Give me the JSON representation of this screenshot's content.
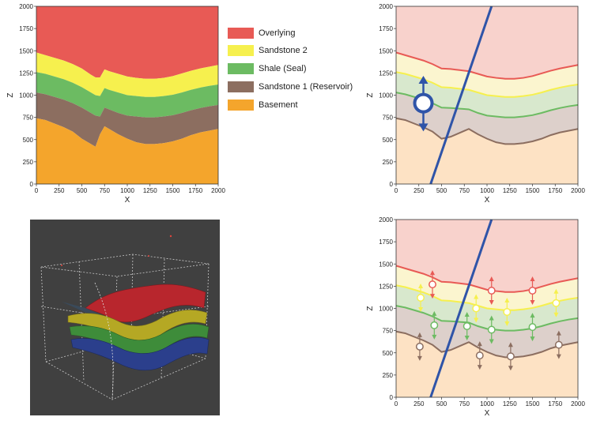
{
  "layers": [
    {
      "id": "overlying",
      "label": "Overlying",
      "color": "#e85a55",
      "light": "#f8d2cc"
    },
    {
      "id": "sandstone2",
      "label": "Sandstone 2",
      "color": "#f6f04e",
      "light": "#fbf5cf"
    },
    {
      "id": "shale",
      "label": "Shale (Seal)",
      "color": "#6cbb62",
      "light": "#d8e8cd"
    },
    {
      "id": "sandstone1",
      "label": "Sandstone 1 (Reservoir)",
      "color": "#8c6e60",
      "light": "#ddd0cb"
    },
    {
      "id": "basement",
      "label": "Basement",
      "color": "#f4a52c",
      "light": "#fde2c4"
    }
  ],
  "fault_color": "#2f54a8",
  "chart_data": [
    {
      "type": "area",
      "xlabel": "X",
      "ylabel": "Z",
      "xlim": [
        0,
        2000
      ],
      "ylim": [
        0,
        2000
      ],
      "xticks": [
        0,
        250,
        500,
        750,
        1000,
        1250,
        1500,
        1750,
        2000
      ],
      "yticks": [
        0,
        250,
        500,
        750,
        1000,
        1250,
        1500,
        1750,
        2000
      ],
      "x": [
        0,
        100,
        200,
        300,
        400,
        500,
        600,
        650,
        700,
        750,
        800,
        900,
        1000,
        1100,
        1200,
        1300,
        1400,
        1500,
        1600,
        1700,
        1800,
        1900,
        2000
      ],
      "series": [
        {
          "name": "Overlying",
          "values": [
            1480,
            1450,
            1420,
            1390,
            1350,
            1300,
            1230,
            1200,
            1200,
            1290,
            1270,
            1240,
            1210,
            1195,
            1185,
            1185,
            1195,
            1215,
            1245,
            1275,
            1300,
            1320,
            1340
          ]
        },
        {
          "name": "Sandstone 2",
          "values": [
            1260,
            1240,
            1210,
            1180,
            1140,
            1090,
            1030,
            1000,
            990,
            1080,
            1060,
            1030,
            1000,
            990,
            980,
            980,
            990,
            1005,
            1030,
            1060,
            1085,
            1105,
            1120
          ]
        },
        {
          "name": "Shale (Seal)",
          "values": [
            1030,
            1010,
            980,
            950,
            910,
            860,
            800,
            770,
            760,
            860,
            840,
            800,
            770,
            760,
            750,
            750,
            760,
            775,
            800,
            830,
            855,
            875,
            890
          ]
        },
        {
          "name": "Sandstone 1 (Reservoir)",
          "values": [
            740,
            720,
            680,
            640,
            590,
            510,
            450,
            420,
            560,
            650,
            620,
            560,
            510,
            470,
            450,
            450,
            460,
            480,
            510,
            550,
            580,
            600,
            620
          ]
        }
      ]
    },
    {
      "type": "line",
      "xlabel": "X",
      "ylabel": "Z",
      "xlim": [
        0,
        2000
      ],
      "ylim": [
        0,
        2000
      ],
      "xticks": [
        0,
        250,
        500,
        750,
        1000,
        1250,
        1500,
        1750,
        2000
      ],
      "yticks": [
        0,
        250,
        500,
        750,
        1000,
        1250,
        1500,
        1750,
        2000
      ],
      "fault": [
        [
          380,
          0
        ],
        [
          1050,
          2000
        ]
      ],
      "well": {
        "x": 300,
        "z": 910,
        "z_top": 1200,
        "z_bottom": 610
      }
    },
    {
      "type": "line",
      "xlabel": "X",
      "ylabel": "Z",
      "xlim": [
        0,
        2000
      ],
      "ylim": [
        0,
        2000
      ],
      "xticks": [
        0,
        250,
        500,
        750,
        1000,
        1250,
        1500,
        1750,
        2000
      ],
      "yticks": [
        0,
        250,
        500,
        750,
        1000,
        1250,
        1500,
        1750,
        2000
      ],
      "fault": [
        [
          380,
          0
        ],
        [
          1050,
          2000
        ]
      ],
      "control_points": [
        {
          "layer": "overlying",
          "points": [
            [
              400,
              1270
            ],
            [
              1050,
              1200
            ],
            [
              1500,
              1200
            ]
          ]
        },
        {
          "layer": "sandstone2",
          "points": [
            [
              270,
              1120
            ],
            [
              880,
              1000
            ],
            [
              1220,
              960
            ],
            [
              1760,
              1060
            ]
          ]
        },
        {
          "layer": "shale",
          "points": [
            [
              420,
              810
            ],
            [
              780,
              800
            ],
            [
              1050,
              760
            ],
            [
              1500,
              790
            ]
          ]
        },
        {
          "layer": "sandstone1",
          "points": [
            [
              260,
              570
            ],
            [
              920,
              470
            ],
            [
              1260,
              460
            ],
            [
              1790,
              590
            ]
          ]
        }
      ]
    }
  ]
}
